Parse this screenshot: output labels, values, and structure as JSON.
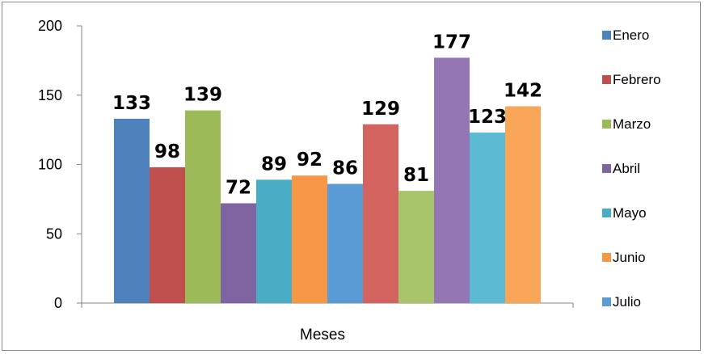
{
  "chart_data": {
    "type": "bar",
    "xlabel": "Meses",
    "ylabel": "",
    "ylim": [
      0,
      200
    ],
    "yticks": [
      0,
      50,
      100,
      150,
      200
    ],
    "grid": false,
    "legend_position": "right",
    "series": [
      {
        "name": "Enero",
        "value": 133,
        "color": "#4F81BD"
      },
      {
        "name": "Febrero",
        "value": 98,
        "color": "#C0504D"
      },
      {
        "name": "Marzo",
        "value": 139,
        "color": "#9BBB59"
      },
      {
        "name": "Abril",
        "value": 72,
        "color": "#8064A2"
      },
      {
        "name": "Mayo",
        "value": 89,
        "color": "#4BACC6"
      },
      {
        "name": "Junio",
        "value": 92,
        "color": "#F79646"
      },
      {
        "name": "Julio",
        "value": 86,
        "color": "#5B9BD5"
      },
      {
        "name": "",
        "value": 129,
        "color": "#D2635F"
      },
      {
        "name": "",
        "value": 81,
        "color": "#A9C56B"
      },
      {
        "name": "",
        "value": 177,
        "color": "#9376B3"
      },
      {
        "name": "",
        "value": 123,
        "color": "#5DBAD3"
      },
      {
        "name": "",
        "value": 142,
        "color": "#F9A659"
      }
    ]
  }
}
